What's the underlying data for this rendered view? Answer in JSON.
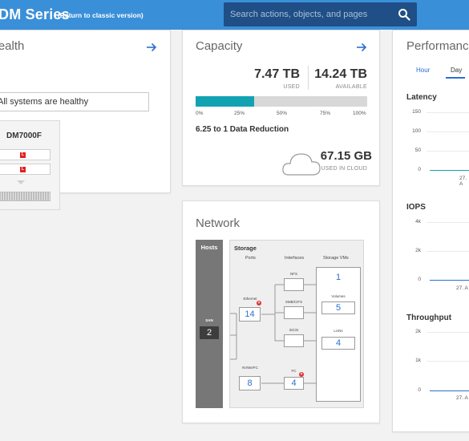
{
  "header": {
    "title": "DM Series",
    "classic_link": "(Return to classic version)",
    "search_placeholder": "Search actions, objects, and pages"
  },
  "health": {
    "title": "Health",
    "status": "All systems are healthy",
    "device_name": "DM7000F",
    "drive_led": "L"
  },
  "capacity": {
    "title": "Capacity",
    "used_value": "7.47 TB",
    "used_label": "USED",
    "available_value": "14.24 TB",
    "available_label": "AVAILABLE",
    "used_fraction": 0.343,
    "ticks": [
      "0%",
      "25%",
      "50%",
      "75%",
      "100%"
    ],
    "data_reduction": "6.25 to 1 Data Reduction",
    "cloud_value": "67.15 GB",
    "cloud_label": "USED IN CLOUD"
  },
  "network": {
    "title": "Network",
    "hosts_label": "Hosts",
    "san_label": "SAN",
    "san_count": "2",
    "storage_label": "Storage",
    "col_ports": "Ports",
    "col_interfaces": "Interfaces",
    "col_vms": "Storage VMs",
    "ethernet_label": "Ethernet",
    "ethernet_count": "14",
    "nvme_label": "NVMe/FC",
    "nvme_count": "8",
    "nfs_label": "NFS",
    "smb_label": "SMB/CIFS",
    "iscsi_label": "iSCSI",
    "fc_label": "FC",
    "fc_count": "4",
    "vms_count": "1",
    "volumes_label": "Volumes",
    "volumes_count": "5",
    "luns_label": "LUNs",
    "luns_count": "4"
  },
  "performance": {
    "title": "Performance",
    "tabs": [
      "Hour",
      "Day"
    ],
    "active_tab": "Day",
    "latency": {
      "title": "Latency",
      "ticks": [
        "150",
        "100",
        "50",
        "0"
      ],
      "xlabel": "27. A"
    },
    "iops": {
      "title": "IOPS",
      "ticks": [
        "4k",
        "2k",
        "0"
      ],
      "xlabel": "27. A"
    },
    "throughput": {
      "title": "Throughput",
      "ticks": [
        "2k",
        "1k",
        "0"
      ],
      "xlabel": "27. A"
    }
  },
  "colors": {
    "header_bg": "#3a8fd9",
    "search_bg": "#1f4f86",
    "accent": "#2a6fd1",
    "capacity_fill": "#12a3b3",
    "error": "#e03030"
  }
}
